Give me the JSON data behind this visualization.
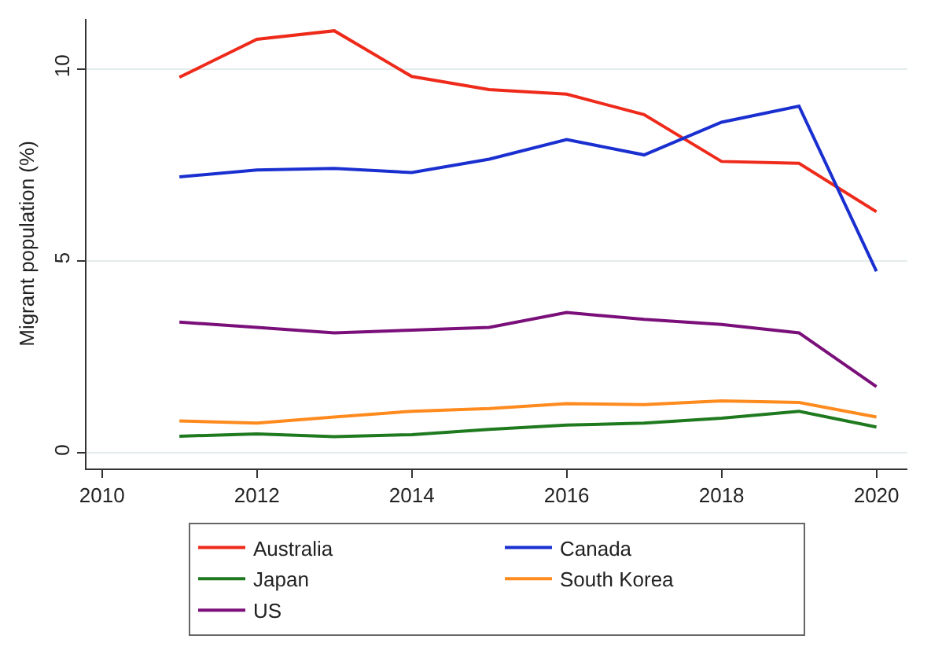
{
  "chart_data": {
    "type": "line",
    "ylabel": "Migrant population (%)",
    "x": [
      2011,
      2012,
      2013,
      2014,
      2015,
      2016,
      2017,
      2018,
      2019,
      2020
    ],
    "series": [
      {
        "name": "Australia",
        "color": "#ee2a1b",
        "values": [
          9.78,
          10.77,
          10.99,
          9.8,
          9.46,
          9.34,
          8.81,
          7.59,
          7.54,
          6.28
        ]
      },
      {
        "name": "Canada",
        "color": "#1a2fd0",
        "values": [
          7.19,
          7.37,
          7.41,
          7.3,
          7.65,
          8.16,
          7.76,
          8.61,
          9.03,
          4.73
        ]
      },
      {
        "name": "Japan",
        "color": "#1f7a1f",
        "values": [
          0.44,
          0.5,
          0.43,
          0.48,
          0.62,
          0.73,
          0.78,
          0.91,
          1.09,
          0.68
        ]
      },
      {
        "name": "South Korea",
        "color": "#ff8a1e",
        "values": [
          0.84,
          0.78,
          0.94,
          1.09,
          1.16,
          1.29,
          1.26,
          1.36,
          1.32,
          0.94
        ]
      },
      {
        "name": "US",
        "color": "#7a0f7a",
        "values": [
          3.41,
          3.27,
          3.13,
          3.2,
          3.27,
          3.66,
          3.48,
          3.35,
          3.13,
          1.73
        ]
      }
    ],
    "xlim": [
      2009.8,
      2020.4
    ],
    "xticks": [
      2010,
      2012,
      2014,
      2016,
      2018,
      2020
    ],
    "ylim": [
      -0.4,
      11.3
    ],
    "yticks": [
      0,
      5,
      10
    ],
    "grid": "y",
    "legend": "bottom",
    "marker": "none",
    "line_style": "solid"
  }
}
